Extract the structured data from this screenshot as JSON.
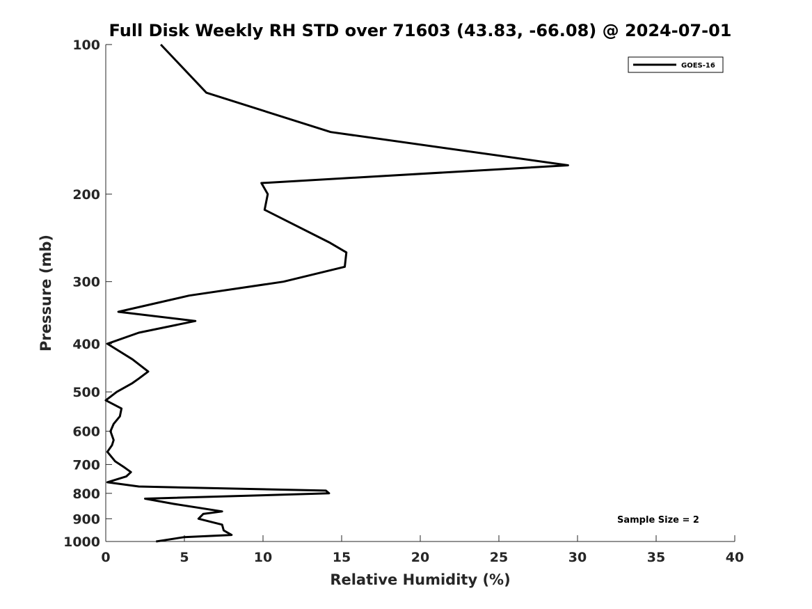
{
  "chart_data": {
    "type": "line",
    "title": "Full Disk Weekly RH STD over 71603 (43.83, -66.08) @ 2024-07-01",
    "xlabel": "Relative Humidity (%)",
    "ylabel": "Pressure (mb)",
    "xlim": [
      0,
      40
    ],
    "ylim": [
      100,
      1000
    ],
    "y_scale": "log",
    "y_reversed": true,
    "grid": false,
    "legend_position": "top-right",
    "x_ticks": [
      "0",
      "5",
      "10",
      "15",
      "20",
      "25",
      "30",
      "35",
      "40"
    ],
    "y_ticks": [
      "100",
      "200",
      "300",
      "400",
      "500",
      "600",
      "700",
      "800",
      "900",
      "1000"
    ],
    "annotation": "Sample Size = 2",
    "series": [
      {
        "name": "GOES-16",
        "color": "#000000",
        "points": [
          [
            3.5,
            100
          ],
          [
            6.4,
            125
          ],
          [
            14.3,
            150
          ],
          [
            29.4,
            175
          ],
          [
            9.9,
            190
          ],
          [
            10.3,
            200
          ],
          [
            10.1,
            215
          ],
          [
            14.2,
            250
          ],
          [
            15.3,
            262
          ],
          [
            15.2,
            280
          ],
          [
            11.3,
            300
          ],
          [
            5.3,
            320
          ],
          [
            0.8,
            345
          ],
          [
            5.7,
            360
          ],
          [
            2.1,
            380
          ],
          [
            0.1,
            400
          ],
          [
            1.7,
            430
          ],
          [
            2.7,
            455
          ],
          [
            2.1,
            470
          ],
          [
            1.7,
            480
          ],
          [
            0.7,
            500
          ],
          [
            0.0,
            520
          ],
          [
            1.0,
            540
          ],
          [
            0.9,
            560
          ],
          [
            0.5,
            580
          ],
          [
            0.3,
            600
          ],
          [
            0.5,
            625
          ],
          [
            0.4,
            640
          ],
          [
            0.1,
            660
          ],
          [
            0.6,
            690
          ],
          [
            1.2,
            710
          ],
          [
            1.6,
            725
          ],
          [
            1.3,
            740
          ],
          [
            0.1,
            760
          ],
          [
            2.1,
            775
          ],
          [
            14.0,
            790
          ],
          [
            14.2,
            800
          ],
          [
            2.5,
            820
          ],
          [
            4.3,
            840
          ],
          [
            7.4,
            870
          ],
          [
            6.2,
            880
          ],
          [
            5.9,
            900
          ],
          [
            7.4,
            925
          ],
          [
            7.5,
            950
          ],
          [
            8.0,
            970
          ],
          [
            5.0,
            980
          ],
          [
            3.2,
            1000
          ]
        ]
      }
    ]
  }
}
